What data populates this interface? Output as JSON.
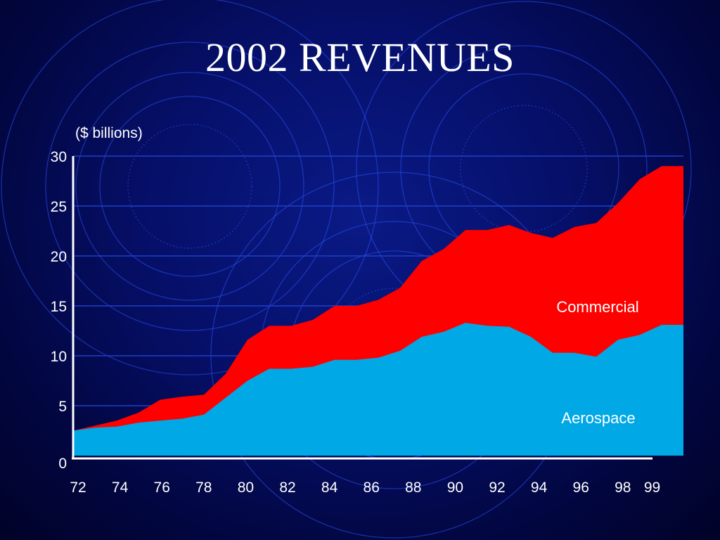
{
  "page": {
    "title": "2002 REVENUES"
  },
  "colors": {
    "aerospace": "#00a8e6",
    "commercial": "#ff0000",
    "gridline": "#1f3fc8",
    "axis": "#ffffff",
    "text": "#ffffff"
  },
  "chart_data": {
    "type": "area",
    "stacked": true,
    "title": "2002 REVENUES",
    "ylabel": "($ billions)",
    "xlabel": "",
    "x": [
      72,
      73,
      74,
      75,
      76,
      77,
      78,
      79,
      80,
      81,
      82,
      83,
      84,
      85,
      86,
      87,
      88,
      89,
      90,
      91,
      92,
      93,
      94,
      95,
      96,
      97,
      98,
      99,
      100
    ],
    "xtick_labels": [
      "72",
      "74",
      "76",
      "78",
      "80",
      "82",
      "84",
      "86",
      "88",
      "90",
      "92",
      "94",
      "96",
      "98",
      "99"
    ],
    "xtick_values": [
      72,
      74,
      76,
      78,
      80,
      82,
      84,
      86,
      88,
      90,
      92,
      94,
      96,
      98,
      99.4
    ],
    "ylim": [
      0,
      30
    ],
    "yticks": [
      "0",
      "5",
      "10",
      "15",
      "20",
      "25",
      "30"
    ],
    "ytick_values": [
      0,
      5,
      10,
      15,
      20,
      25,
      30
    ],
    "grid": true,
    "series": [
      {
        "name": "Aerospace",
        "values": [
          2.5,
          2.8,
          2.9,
          3.3,
          3.5,
          3.7,
          4.1,
          5.8,
          7.5,
          8.7,
          8.7,
          8.9,
          9.6,
          9.6,
          9.8,
          10.5,
          11.9,
          12.4,
          13.3,
          13.0,
          12.9,
          11.9,
          10.3,
          10.3,
          9.9,
          11.6,
          12.1,
          13.1,
          13.1
        ],
        "label": "Aerospace"
      },
      {
        "name": "Commercial",
        "values": [
          0,
          0.2,
          0.6,
          1.0,
          2.1,
          2.2,
          2.0,
          2.4,
          4.1,
          4.3,
          4.3,
          4.7,
          5.4,
          5.4,
          5.8,
          6.3,
          7.6,
          8.3,
          9.3,
          9.6,
          10.2,
          10.4,
          11.5,
          12.6,
          13.4,
          13.7,
          15.6,
          15.9,
          15.9
        ],
        "label": "Commercial"
      }
    ]
  }
}
